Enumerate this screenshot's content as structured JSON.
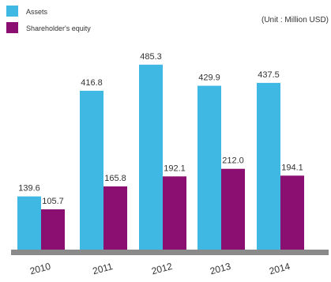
{
  "unit_note": "(Unit : Million USD)",
  "colors": {
    "assets": "#3fb8e4",
    "equity": "#8a0f70",
    "axis": "#8a8a8a",
    "text": "#333333"
  },
  "chart_data": {
    "type": "bar",
    "categories": [
      "2010",
      "2011",
      "2012",
      "2013",
      "2014"
    ],
    "series": [
      {
        "name": "Assets",
        "values": [
          139.6,
          416.8,
          485.3,
          429.9,
          437.5
        ],
        "labels": [
          "139.6",
          "416.8",
          "485.3",
          "429.9",
          "437.5"
        ]
      },
      {
        "name": "Shareholder's equity",
        "values": [
          105.7,
          165.8,
          192.1,
          212.0,
          194.1
        ],
        "labels": [
          "105.7",
          "165.8",
          "192.1",
          "212.0",
          "194.1"
        ]
      }
    ],
    "ylim": [
      0,
      500
    ],
    "legend": "top-left"
  }
}
